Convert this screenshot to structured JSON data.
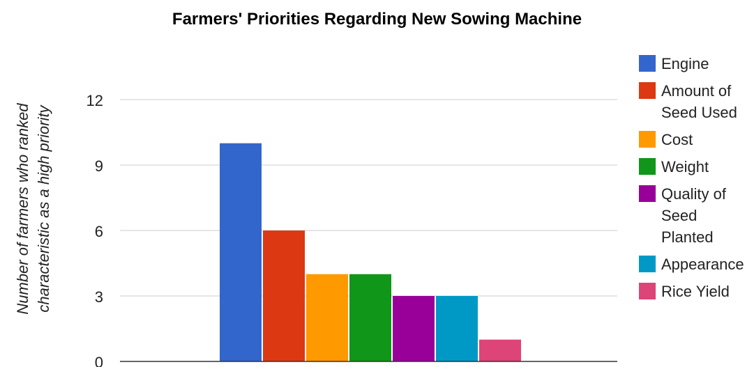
{
  "chart_data": {
    "type": "bar",
    "title": "Farmers' Priorities Regarding New Sowing Machine",
    "xlabel": "",
    "ylabel": "Number of farmers who ranked characteristic as a high priority",
    "ylim": [
      0,
      13
    ],
    "yticks": [
      0,
      3,
      6,
      9,
      12
    ],
    "grid": true,
    "legend_position": "right",
    "series": [
      {
        "name": "Engine",
        "value": 10,
        "color": "#3366cc"
      },
      {
        "name": "Amount of Seed Used",
        "value": 6,
        "color": "#dc3912"
      },
      {
        "name": "Cost",
        "value": 4,
        "color": "#ff9900"
      },
      {
        "name": "Weight",
        "value": 4,
        "color": "#109618"
      },
      {
        "name": "Quality of Seed Planted",
        "value": 3,
        "color": "#990099"
      },
      {
        "name": "Appearance",
        "value": 3,
        "color": "#0099c6"
      },
      {
        "name": "Rice Yield",
        "value": 1,
        "color": "#dd4477"
      }
    ]
  },
  "legend_lines": [
    [
      "Engine"
    ],
    [
      "Amount of",
      "Seed Used"
    ],
    [
      "Cost"
    ],
    [
      "Weight"
    ],
    [
      "Quality of",
      "Seed",
      "Planted"
    ],
    [
      "Appearance"
    ],
    [
      "Rice Yield"
    ]
  ],
  "ylabel_lines": [
    "Number of farmers who ranked",
    "characteristic as a high priority"
  ]
}
